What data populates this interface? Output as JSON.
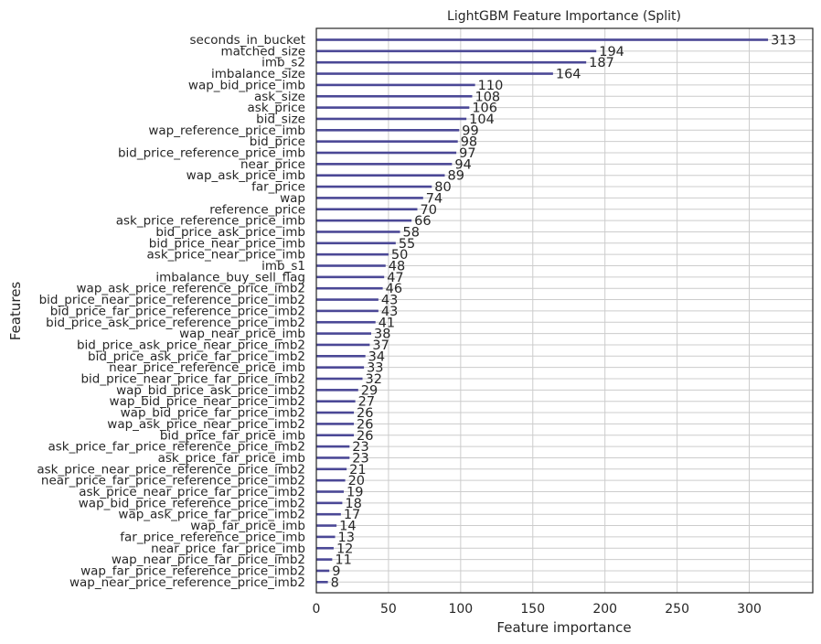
{
  "chart_data": {
    "type": "bar",
    "orientation": "horizontal",
    "title": "LightGBM Feature Importance (Split)",
    "xlabel": "Feature importance",
    "ylabel": "Features",
    "xlim": [
      0,
      344
    ],
    "xticks": [
      0,
      50,
      100,
      150,
      200,
      250,
      300
    ],
    "grid": true,
    "bar_color": "#4b4896",
    "categories": [
      "seconds_in_bucket",
      "matched_size",
      "imb_s2",
      "imbalance_size",
      "wap_bid_price_imb",
      "ask_size",
      "ask_price",
      "bid_size",
      "wap_reference_price_imb",
      "bid_price",
      "bid_price_reference_price_imb",
      "near_price",
      "wap_ask_price_imb",
      "far_price",
      "wap",
      "reference_price",
      "ask_price_reference_price_imb",
      "bid_price_ask_price_imb",
      "bid_price_near_price_imb",
      "ask_price_near_price_imb",
      "imb_s1",
      "imbalance_buy_sell_flag",
      "wap_ask_price_reference_price_imb2",
      "bid_price_near_price_reference_price_imb2",
      "bid_price_far_price_reference_price_imb2",
      "bid_price_ask_price_reference_price_imb2",
      "wap_near_price_imb",
      "bid_price_ask_price_near_price_imb2",
      "bid_price_ask_price_far_price_imb2",
      "near_price_reference_price_imb",
      "bid_price_near_price_far_price_imb2",
      "wap_bid_price_ask_price_imb2",
      "wap_bid_price_near_price_imb2",
      "wap_bid_price_far_price_imb2",
      "wap_ask_price_near_price_imb2",
      "bid_price_far_price_imb",
      "ask_price_far_price_reference_price_imb2",
      "ask_price_far_price_imb",
      "ask_price_near_price_reference_price_imb2",
      "near_price_far_price_reference_price_imb2",
      "ask_price_near_price_far_price_imb2",
      "wap_bid_price_reference_price_imb2",
      "wap_ask_price_far_price_imb2",
      "wap_far_price_imb",
      "far_price_reference_price_imb",
      "near_price_far_price_imb",
      "wap_near_price_far_price_imb2",
      "wap_far_price_reference_price_imb2",
      "wap_near_price_reference_price_imb2"
    ],
    "values": [
      313,
      194,
      187,
      164,
      110,
      108,
      106,
      104,
      99,
      98,
      97,
      94,
      89,
      80,
      74,
      70,
      66,
      58,
      55,
      50,
      48,
      47,
      46,
      43,
      43,
      41,
      38,
      37,
      34,
      33,
      32,
      29,
      27,
      26,
      26,
      26,
      23,
      23,
      21,
      20,
      19,
      18,
      17,
      14,
      13,
      12,
      11,
      9,
      8
    ]
  }
}
